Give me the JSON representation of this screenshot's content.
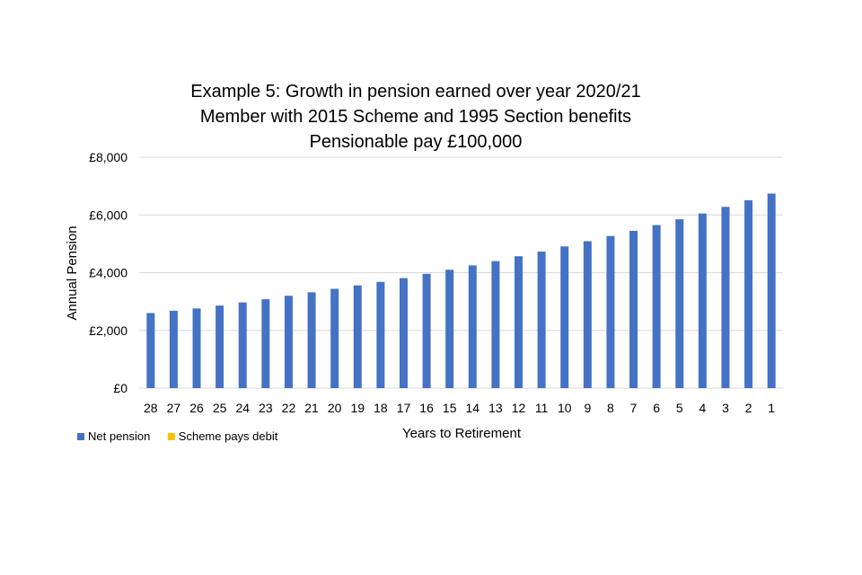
{
  "chart_data": {
    "type": "bar",
    "title_lines": [
      "Example 5: Growth in pension earned over year 2020/21",
      "Member with 2015 Scheme and 1995 Section benefits",
      "Pensionable pay £100,000"
    ],
    "xlabel": "Years to Retirement",
    "ylabel": "Annual Pension",
    "categories": [
      "28",
      "27",
      "26",
      "25",
      "24",
      "23",
      "22",
      "21",
      "20",
      "19",
      "18",
      "17",
      "16",
      "15",
      "14",
      "13",
      "12",
      "11",
      "10",
      "9",
      "8",
      "7",
      "6",
      "5",
      "4",
      "3",
      "2",
      "1"
    ],
    "series": [
      {
        "name": "Net pension",
        "color": "#4472c4",
        "values": [
          2600,
          2680,
          2760,
          2860,
          2970,
          3080,
          3200,
          3320,
          3440,
          3560,
          3680,
          3810,
          3960,
          4100,
          4250,
          4400,
          4570,
          4730,
          4910,
          5090,
          5270,
          5450,
          5650,
          5850,
          6050,
          6280,
          6510,
          6740
        ]
      },
      {
        "name": "Scheme pays debit",
        "color": "#ffc000",
        "values": [
          0,
          0,
          0,
          0,
          0,
          0,
          0,
          0,
          0,
          0,
          0,
          0,
          0,
          0,
          0,
          0,
          0,
          0,
          0,
          0,
          0,
          0,
          0,
          0,
          0,
          0,
          0,
          0
        ]
      }
    ],
    "ylim": [
      0,
      8000
    ],
    "yticks": [
      0,
      2000,
      4000,
      6000,
      8000
    ],
    "ytick_labels": [
      "£0",
      "£2,000",
      "£4,000",
      "£6,000",
      "£8,000"
    ],
    "grid": true,
    "legend_position": "bottom-left"
  }
}
